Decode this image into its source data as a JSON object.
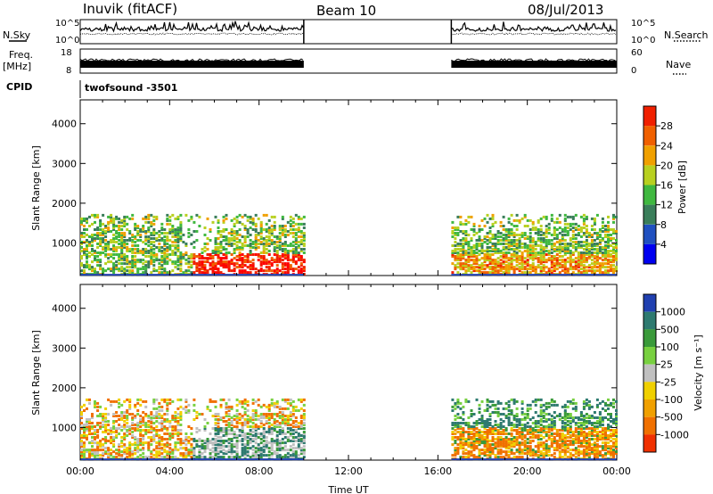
{
  "header": {
    "station": "Inuvik (fitACF)",
    "beam": "Beam 10",
    "date": "08/Jul/2013"
  },
  "side_labels": {
    "nsky": "N.Sky",
    "nsearch": "N.Search",
    "freq": "Freq.",
    "freq_unit": "[MHz]",
    "nave": "Nave",
    "cpid": "CPID"
  },
  "cpid_value": "twofsound -3501",
  "colors": {
    "power": [
      "#0000f0",
      "#2050c0",
      "#3a7e5a",
      "#40b840",
      "#b8d020",
      "#f0a000",
      "#f06000",
      "#f02000",
      "#ff0000"
    ],
    "velocity": [
      "#2040b0",
      "#2e7a70",
      "#3a9a3a",
      "#78d040",
      "#c0c0c0",
      "#f0d000",
      "#f0a000",
      "#f07000",
      "#f03000",
      "#ff0000"
    ]
  },
  "chart_data": [
    {
      "type": "line",
      "name": "sky-noise-search-noise",
      "left_ticks": [
        "10^5",
        "10^0"
      ],
      "right_ticks": [
        "10^5",
        "10^0"
      ],
      "xlim": [
        0,
        24
      ],
      "data_intervals": [
        [
          0,
          10
        ],
        [
          16.6,
          24
        ]
      ]
    },
    {
      "type": "line",
      "name": "frequency-nave",
      "left_ticks": [
        "18",
        "8"
      ],
      "right_ticks": [
        "60",
        "0"
      ],
      "ylim_left": [
        8,
        18
      ],
      "ylim_right": [
        0,
        60
      ],
      "xlim": [
        0,
        24
      ],
      "data_intervals": [
        [
          0,
          10
        ],
        [
          16.6,
          24
        ]
      ]
    },
    {
      "type": "heatmap",
      "name": "power",
      "ylabel": "Slant Range [km]",
      "xlim": [
        0,
        24
      ],
      "ylim": [
        180,
        4600
      ],
      "y_ticks": [
        "1000",
        "2000",
        "3000",
        "4000"
      ],
      "colorbar_label": "Power [dB]",
      "colorbar_ticks": [
        "4",
        "8",
        "12",
        "16",
        "20",
        "24",
        "28"
      ],
      "colorbar_range": [
        0,
        32
      ]
    },
    {
      "type": "heatmap",
      "name": "velocity",
      "ylabel": "Slant Range [km]",
      "xlabel": "Time UT",
      "xlim": [
        0,
        24
      ],
      "ylim": [
        180,
        4600
      ],
      "y_ticks": [
        "1000",
        "2000",
        "3000",
        "4000"
      ],
      "x_ticks": [
        "00:00",
        "04:00",
        "08:00",
        "12:00",
        "16:00",
        "20:00",
        "00:00"
      ],
      "colorbar_label": "Velocity [m s⁻¹]",
      "colorbar_ticks": [
        "1000",
        "500",
        "100",
        "25",
        "-25",
        "-100",
        "-500",
        "-1000"
      ]
    }
  ]
}
